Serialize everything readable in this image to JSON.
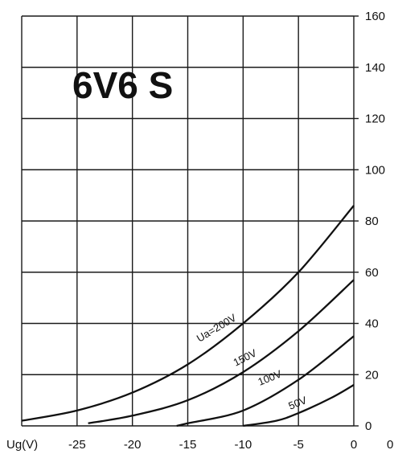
{
  "chart_data": {
    "type": "line",
    "title": "6V6 S",
    "xlabel": "Ug(V)",
    "ylabel": "",
    "xlim": [
      -30,
      0
    ],
    "ylim": [
      0,
      160
    ],
    "x_ticks": [
      "-25",
      "-20",
      "-15",
      "-10",
      "-5",
      "0"
    ],
    "y_ticks": [
      "0",
      "20",
      "40",
      "60",
      "80",
      "100",
      "120",
      "140",
      "160"
    ],
    "extra_x_tick": "0",
    "grid": true,
    "series": [
      {
        "name": "Ua=200V",
        "points": [
          [
            -30,
            2
          ],
          [
            -25,
            6
          ],
          [
            -20,
            13
          ],
          [
            -15,
            24
          ],
          [
            -10,
            40
          ],
          [
            -5,
            60
          ],
          [
            0,
            86
          ]
        ]
      },
      {
        "name": "150V",
        "points": [
          [
            -24,
            1
          ],
          [
            -20,
            4
          ],
          [
            -15,
            10
          ],
          [
            -10,
            21
          ],
          [
            -5,
            37
          ],
          [
            0,
            57
          ]
        ]
      },
      {
        "name": "100V",
        "points": [
          [
            -16,
            0
          ],
          [
            -15,
            1
          ],
          [
            -10,
            6
          ],
          [
            -5,
            18
          ],
          [
            0,
            35
          ]
        ]
      },
      {
        "name": "50V",
        "points": [
          [
            -10,
            0
          ],
          [
            -7,
            2
          ],
          [
            -5,
            5
          ],
          [
            -2,
            11
          ],
          [
            0,
            16
          ]
        ]
      }
    ]
  }
}
